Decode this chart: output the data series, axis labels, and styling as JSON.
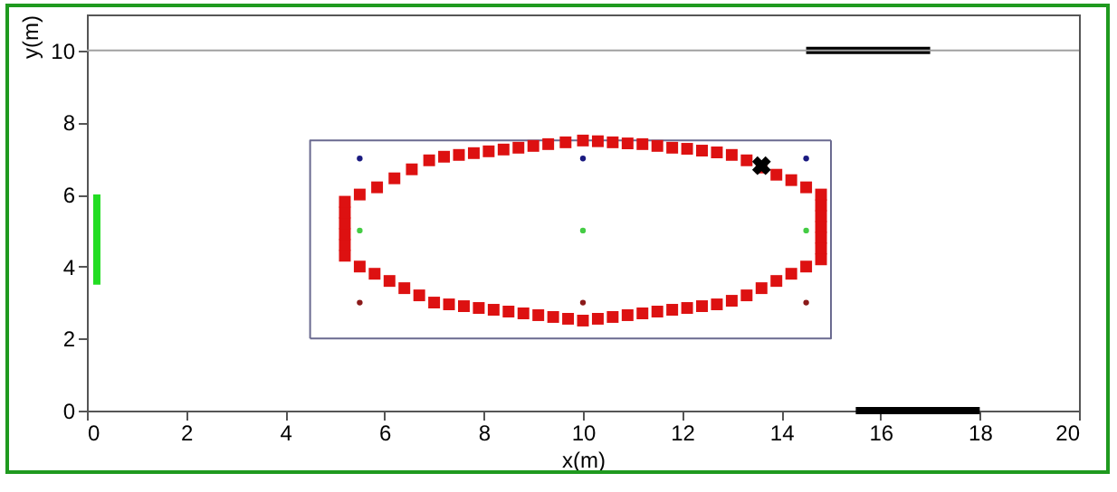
{
  "chart_data": {
    "type": "scatter",
    "xlabel": "x(m)",
    "ylabel": "y(m)",
    "xlim": [
      0,
      20
    ],
    "ylim": [
      0,
      11
    ],
    "xticks": [
      0,
      2,
      4,
      6,
      8,
      10,
      12,
      14,
      16,
      18,
      20
    ],
    "yticks": [
      0,
      2,
      4,
      6,
      8,
      10
    ],
    "grid": false,
    "ref_lines": [
      {
        "axis": "y",
        "value": 10,
        "color": "#a0a0a0"
      }
    ],
    "series": [
      {
        "type": "line",
        "color": "#6a6a90",
        "x": [
          4.5,
          15,
          15
        ],
        "values": [
          2,
          2,
          7.5
        ]
      },
      {
        "type": "line",
        "color": "#6a6a90",
        "x": [
          15,
          4.5,
          4.5
        ],
        "values": [
          7.5,
          7.5,
          2
        ]
      },
      {
        "type": "line",
        "color": "#000000",
        "x": [
          14.5,
          17
        ],
        "values": [
          10,
          10
        ]
      },
      {
        "type": "line",
        "color": "#000000",
        "x": [
          15.5,
          18
        ],
        "values": [
          0,
          0
        ]
      },
      {
        "type": "line",
        "color": "#22dd22",
        "x": [
          0.2,
          0.2
        ],
        "values": [
          3.5,
          6
        ]
      },
      {
        "marker": "square",
        "color": "#dd1111",
        "x": [
          5.2,
          5.2,
          5.2,
          5.2,
          5.2,
          5.2,
          5.5,
          5.85,
          6.2,
          6.55,
          6.9,
          7.2,
          7.5,
          7.8,
          8.1,
          8.4,
          8.7,
          9.0,
          9.3,
          9.65,
          10.0,
          10.3,
          10.6,
          10.9,
          11.2,
          11.5,
          11.8,
          12.1,
          12.4,
          12.7,
          13.0,
          13.3,
          13.6,
          13.9,
          14.2,
          14.5,
          14.8,
          14.8,
          14.8,
          14.8,
          14.8,
          14.8,
          14.8,
          14.5,
          14.2,
          13.9,
          13.6,
          13.3,
          13.0,
          12.7,
          12.4,
          12.1,
          11.8,
          11.5,
          11.2,
          10.9,
          10.6,
          10.3,
          10.0,
          9.7,
          9.4,
          9.1,
          8.8,
          8.5,
          8.2,
          7.9,
          7.6,
          7.3,
          7.0,
          6.7,
          6.4,
          6.1,
          5.8,
          5.5
        ],
        "values": [
          4.3,
          4.6,
          4.9,
          5.2,
          5.5,
          5.8,
          6.0,
          6.2,
          6.45,
          6.7,
          6.95,
          7.05,
          7.1,
          7.15,
          7.2,
          7.25,
          7.3,
          7.35,
          7.4,
          7.45,
          7.5,
          7.48,
          7.45,
          7.42,
          7.4,
          7.35,
          7.3,
          7.27,
          7.22,
          7.17,
          7.1,
          6.95,
          6.75,
          6.55,
          6.4,
          6.2,
          6.0,
          5.7,
          5.4,
          5.1,
          4.8,
          4.5,
          4.2,
          4.0,
          3.8,
          3.6,
          3.4,
          3.2,
          3.05,
          2.95,
          2.9,
          2.85,
          2.8,
          2.75,
          2.7,
          2.65,
          2.6,
          2.55,
          2.5,
          2.55,
          2.6,
          2.65,
          2.7,
          2.75,
          2.8,
          2.85,
          2.9,
          2.95,
          3.0,
          3.2,
          3.4,
          3.6,
          3.8,
          4.0
        ]
      },
      {
        "marker": "circle",
        "color": "#1a1a80",
        "x": [
          5.5,
          10,
          14.5
        ],
        "values": [
          7,
          7,
          7
        ]
      },
      {
        "marker": "circle",
        "color": "#44cc44",
        "x": [
          5.5,
          10,
          14.5
        ],
        "values": [
          5,
          5,
          5
        ]
      },
      {
        "marker": "circle",
        "color": "#8b1a1a",
        "x": [
          5.5,
          10,
          14.5
        ],
        "values": [
          3,
          3,
          3
        ]
      },
      {
        "marker": "cross",
        "color": "#000000",
        "x": [
          13.6
        ],
        "values": [
          6.8
        ]
      }
    ]
  }
}
